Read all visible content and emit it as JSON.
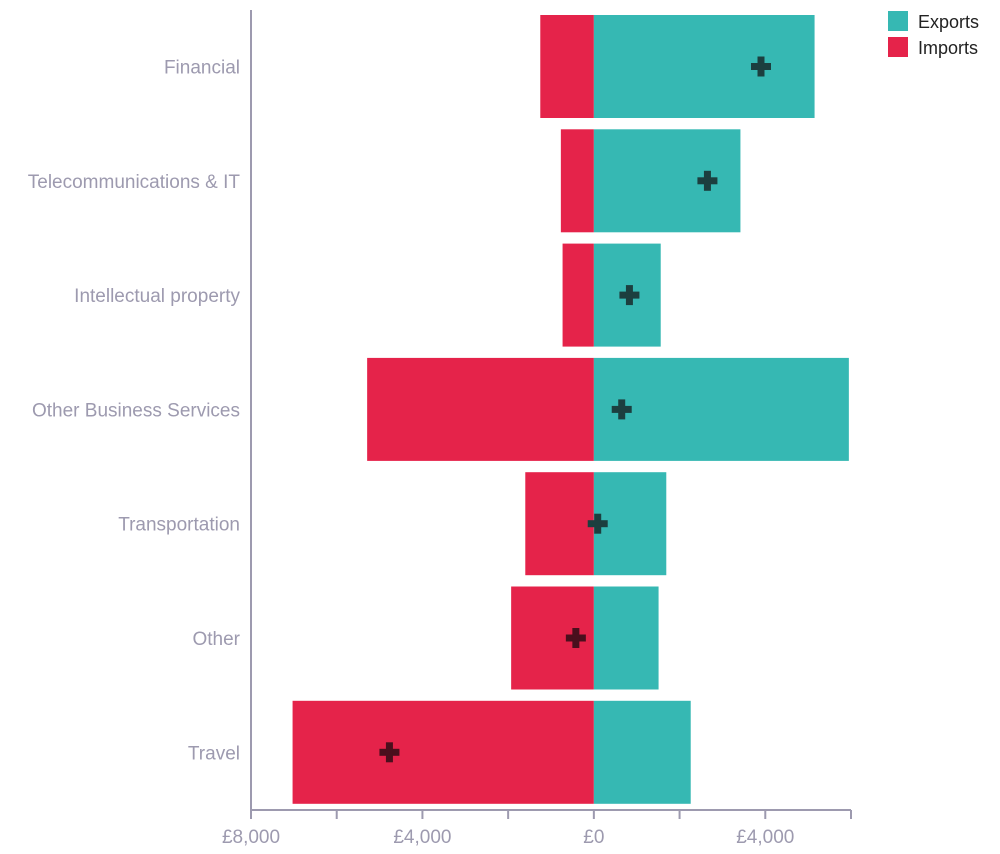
{
  "chart_data": {
    "type": "bar",
    "orientation": "horizontal",
    "stacked_diverging": true,
    "categories": [
      "Financial",
      "Telecommunications & IT",
      "Intellectual property",
      "Other Business Services",
      "Transportation",
      "Other",
      "Travel"
    ],
    "series": [
      {
        "name": "Exports",
        "color": "#36b8b3",
        "values": [
          5150,
          3420,
          1560,
          5950,
          1690,
          1510,
          2260
        ]
      },
      {
        "name": "Imports",
        "color": "#e5234a",
        "values": [
          -1250,
          -770,
          -730,
          -5290,
          -1600,
          -1930,
          -7030
        ]
      }
    ],
    "net_balance": {
      "marker": "plus",
      "values": [
        3900,
        2650,
        830,
        650,
        90,
        -420,
        -4770
      ]
    },
    "xlim": [
      -8000,
      6000
    ],
    "x_ticks": [
      -8000,
      -4000,
      0,
      4000
    ],
    "x_tick_labels": [
      "£8,000",
      "£4,000",
      "£0",
      "£4,000"
    ],
    "minor_tick_step": 2000,
    "grid": false,
    "legend_position": "top-right"
  },
  "colors": {
    "exports": "#36b8b3",
    "imports": "#e5234a",
    "net_marker_positive": "#1c3f3f",
    "net_marker_negative": "#4a0f1d",
    "axis": "#9d9aaf"
  }
}
